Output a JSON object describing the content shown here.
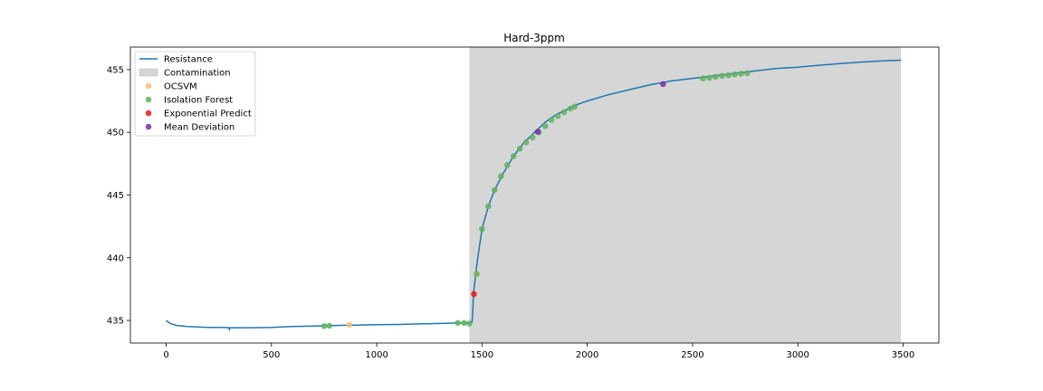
{
  "chart_data": {
    "type": "line",
    "title": "Hard-3ppm",
    "xlabel": "",
    "ylabel": "",
    "xlim": [
      -170,
      3670
    ],
    "ylim": [
      433.2,
      456.8
    ],
    "xticks": [
      0,
      500,
      1000,
      1500,
      2000,
      2500,
      3000,
      3500
    ],
    "yticks": [
      435,
      440,
      445,
      450,
      455
    ],
    "grid": false,
    "legend_position": "top-left",
    "contamination": {
      "x_start": 1440,
      "x_end": 3490
    },
    "series": [
      {
        "name": "Resistance",
        "kind": "line",
        "color": "#1f77b4",
        "x": [
          0,
          20,
          50,
          100,
          150,
          200,
          250,
          298,
          300,
          302,
          310,
          400,
          500,
          600,
          700,
          800,
          900,
          1000,
          1100,
          1200,
          1300,
          1400,
          1445,
          1453,
          1456,
          1460,
          1470,
          1480,
          1500,
          1530,
          1560,
          1600,
          1650,
          1700,
          1750,
          1800,
          1850,
          1900,
          1950,
          2000,
          2100,
          2200,
          2300,
          2400,
          2500,
          2600,
          2700,
          2800,
          2900,
          3000,
          3100,
          3200,
          3300,
          3400,
          3490
        ],
        "y": [
          435.0,
          434.75,
          434.6,
          434.52,
          434.48,
          434.45,
          434.44,
          434.43,
          434.3,
          434.43,
          434.42,
          434.42,
          434.45,
          434.52,
          434.56,
          434.6,
          434.63,
          434.66,
          434.68,
          434.72,
          434.76,
          434.8,
          434.82,
          434.9,
          435.6,
          437.2,
          438.7,
          440.0,
          442.3,
          444.1,
          445.4,
          446.7,
          448.1,
          449.2,
          450.0,
          450.8,
          451.4,
          451.8,
          452.2,
          452.5,
          453.0,
          453.4,
          453.8,
          454.1,
          454.3,
          454.5,
          454.7,
          454.9,
          455.1,
          455.2,
          455.35,
          455.48,
          455.6,
          455.7,
          455.75
        ]
      },
      {
        "name": "Contamination",
        "kind": "area",
        "color": "#d6d6d6"
      },
      {
        "name": "OCSVM",
        "kind": "scatter",
        "color": "#f5c26b",
        "points": [
          [
            870,
            434.65
          ],
          [
            1475,
            438.7
          ]
        ]
      },
      {
        "name": "Isolation Forest",
        "kind": "scatter",
        "color": "#5fb35f",
        "points": [
          [
            750,
            434.55
          ],
          [
            775,
            434.58
          ],
          [
            1385,
            434.8
          ],
          [
            1415,
            434.8
          ],
          [
            1440,
            434.75
          ],
          [
            1475,
            438.7
          ],
          [
            1500,
            442.3
          ],
          [
            1530,
            444.1
          ],
          [
            1560,
            445.4
          ],
          [
            1590,
            446.5
          ],
          [
            1620,
            447.4
          ],
          [
            1650,
            448.1
          ],
          [
            1680,
            448.7
          ],
          [
            1710,
            449.2
          ],
          [
            1740,
            449.6
          ],
          [
            1770,
            450.0
          ],
          [
            1800,
            450.5
          ],
          [
            1830,
            451.0
          ],
          [
            1860,
            451.3
          ],
          [
            1890,
            451.6
          ],
          [
            1920,
            451.9
          ],
          [
            1940,
            452.05
          ],
          [
            2550,
            454.3
          ],
          [
            2580,
            454.35
          ],
          [
            2610,
            454.42
          ],
          [
            2640,
            454.5
          ],
          [
            2670,
            454.55
          ],
          [
            2700,
            454.62
          ],
          [
            2730,
            454.68
          ],
          [
            2760,
            454.72
          ]
        ]
      },
      {
        "name": "Exponential Predict",
        "kind": "scatter",
        "color": "#e41a1c",
        "points": [
          [
            1462,
            437.1
          ]
        ]
      },
      {
        "name": "Mean Deviation",
        "kind": "scatter",
        "color": "#7b2f9e",
        "points": [
          [
            1765,
            450.05
          ],
          [
            2360,
            453.85
          ]
        ]
      }
    ]
  }
}
